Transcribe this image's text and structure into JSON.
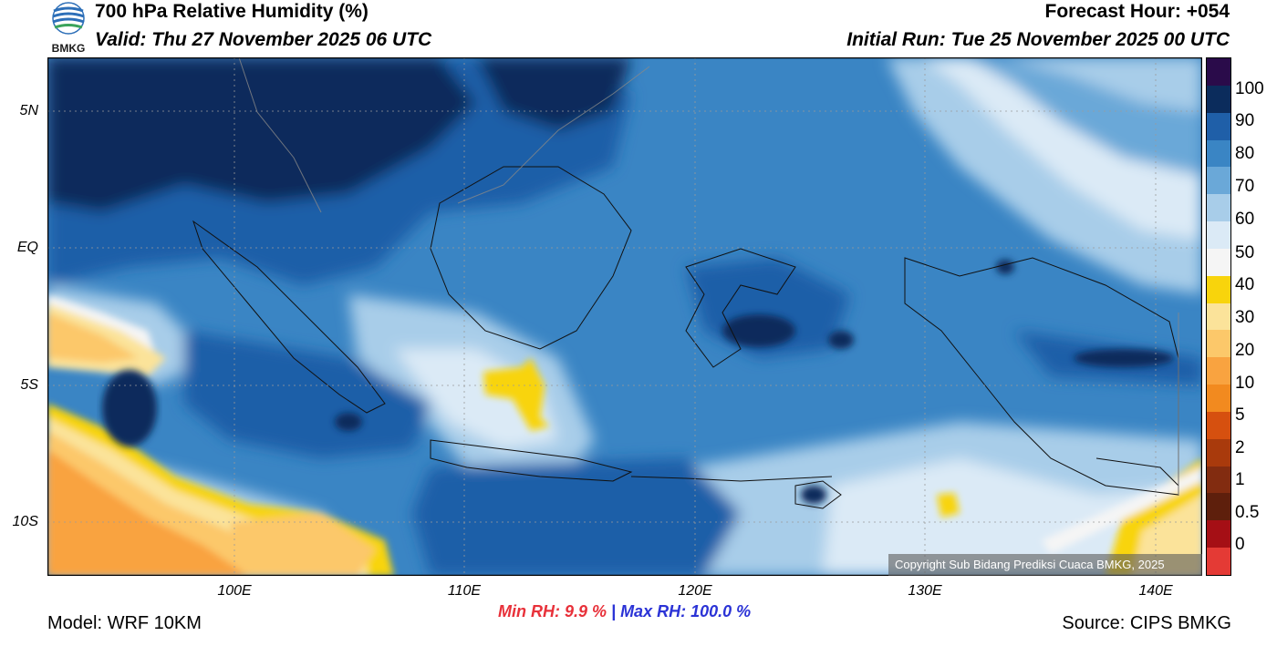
{
  "header": {
    "title": "700 hPa Relative Humidity (%)",
    "valid": "Valid: Thu 27 November 2025 06 UTC",
    "forecast_hour": "Forecast Hour: +054",
    "initial_run": "Initial Run: Tue 25 November 2025 00 UTC"
  },
  "logo": {
    "text": "BMKG"
  },
  "axes": {
    "lat_labels": [
      "5N",
      "EQ",
      "5S",
      "10S"
    ],
    "lon_labels": [
      "100E",
      "110E",
      "120E",
      "130E",
      "140E"
    ]
  },
  "colorbar": {
    "labels": [
      "100",
      "90",
      "80",
      "70",
      "60",
      "50",
      "40",
      "30",
      "20",
      "10",
      "5",
      "2",
      "1",
      "0.5",
      "0"
    ],
    "colors": [
      "#2a0b4a",
      "#0b2c5c",
      "#1f5fa8",
      "#3a85c4",
      "#6aa8d8",
      "#a8cde9",
      "#dbeaf6",
      "#f5f5f5",
      "#f8d40c",
      "#fbe39a",
      "#fcc86a",
      "#f9a340",
      "#f28a1f",
      "#d6500f",
      "#a93a0c",
      "#822c10",
      "#5e1f0c",
      "#a50f15",
      "#e43a35"
    ]
  },
  "stats": {
    "min_rh": "Min RH:   9.9 %",
    "separator": " | ",
    "max_rh": "Max RH: 100.0 %"
  },
  "footer": {
    "model": "Model: WRF 10KM",
    "source": "Source: CIPS BMKG",
    "copyright": "Copyright Sub Bidang Prediksi Cuaca BMKG, 2025"
  }
}
